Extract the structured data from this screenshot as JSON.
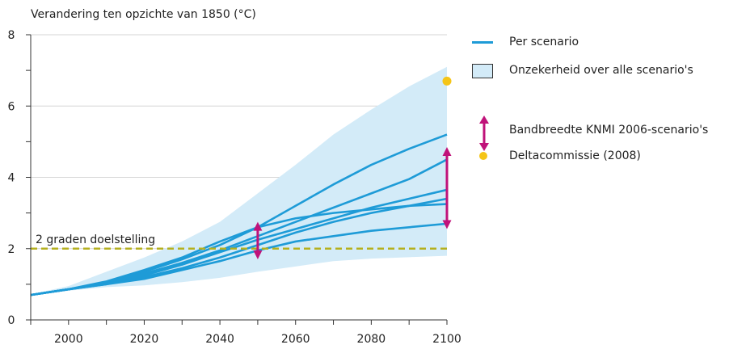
{
  "chart_data": {
    "type": "line",
    "ylabel": "Verandering ten opzichte van 1850 (°C)",
    "xlim": [
      1990,
      2100
    ],
    "ylim": [
      0,
      8
    ],
    "x_ticks": [
      2000,
      2020,
      2040,
      2060,
      2080,
      2100
    ],
    "y_ticks": [
      0,
      2,
      4,
      6,
      8
    ],
    "grid": "horizontal",
    "legend": {
      "placement": "right",
      "items": [
        {
          "label": "Per scenario",
          "symbol": "line",
          "color": "#1e9bd7"
        },
        {
          "label": "Onzekerheid over alle scenario's",
          "symbol": "band",
          "color": "#d3ebf8"
        },
        {
          "label": "Bandbreedte KNMI 2006-scenario's",
          "symbol": "double-arrow",
          "color": "#c0137a"
        },
        {
          "label": "Deltacommissie (2008)",
          "symbol": "dot",
          "color": "#f5c518"
        }
      ]
    },
    "uncertainty_band": {
      "x": [
        1990,
        2000,
        2010,
        2020,
        2030,
        2040,
        2050,
        2060,
        2070,
        2080,
        2090,
        2100
      ],
      "upper": [
        0.72,
        0.95,
        1.35,
        1.75,
        2.2,
        2.75,
        3.55,
        4.35,
        5.2,
        5.9,
        6.55,
        7.1
      ],
      "lower": [
        0.68,
        0.82,
        0.92,
        0.97,
        1.06,
        1.18,
        1.35,
        1.5,
        1.65,
        1.72,
        1.76,
        1.8
      ]
    },
    "x": [
      1990,
      2000,
      2010,
      2020,
      2030,
      2040,
      2050,
      2060,
      2070,
      2080,
      2090,
      2100
    ],
    "series": [
      {
        "values": [
          0.7,
          0.86,
          1.05,
          1.35,
          1.7,
          2.1,
          2.6,
          3.2,
          3.8,
          4.35,
          4.8,
          5.2
        ]
      },
      {
        "values": [
          0.7,
          0.86,
          1.05,
          1.3,
          1.6,
          1.95,
          2.35,
          2.75,
          3.15,
          3.55,
          3.95,
          4.5
        ]
      },
      {
        "values": [
          0.7,
          0.86,
          1.0,
          1.25,
          1.55,
          1.9,
          2.25,
          2.55,
          2.85,
          3.15,
          3.4,
          3.65
        ]
      },
      {
        "values": [
          0.7,
          0.86,
          1.02,
          1.2,
          1.45,
          1.75,
          2.1,
          2.45,
          2.75,
          3.0,
          3.2,
          3.4
        ]
      },
      {
        "values": [
          0.7,
          0.86,
          1.08,
          1.4,
          1.75,
          2.2,
          2.6,
          2.85,
          3.0,
          3.1,
          3.2,
          3.25
        ]
      },
      {
        "values": [
          0.7,
          0.86,
          1.0,
          1.15,
          1.4,
          1.65,
          1.95,
          2.2,
          2.35,
          2.5,
          2.6,
          2.7
        ]
      }
    ],
    "reference_line": {
      "y": 2,
      "label": "2 graden doelstelling",
      "color": "#b5b01e"
    },
    "knmi_ranges": [
      {
        "x": 2050,
        "low": 1.7,
        "high": 2.75
      },
      {
        "x": 2100,
        "low": 2.55,
        "high": 4.85
      }
    ],
    "deltacommissie_point": {
      "x": 2100,
      "y": 6.7
    }
  }
}
